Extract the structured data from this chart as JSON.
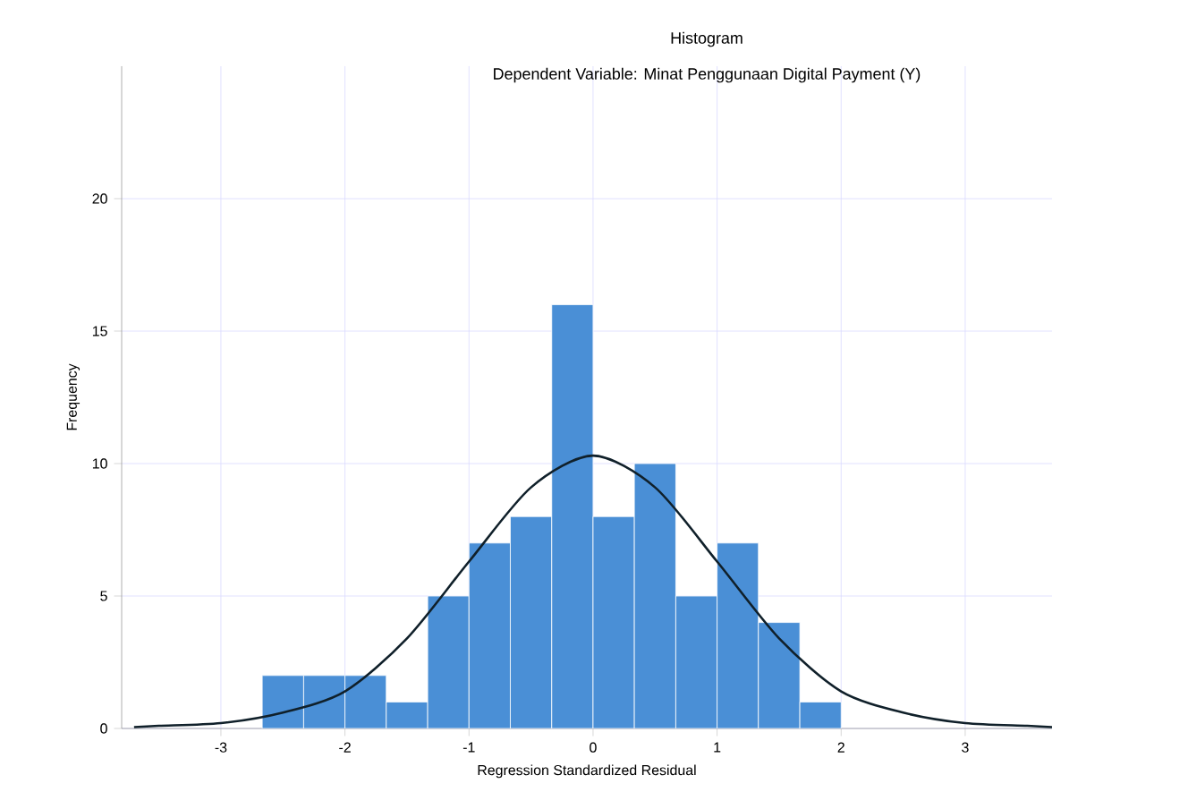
{
  "chart_data": {
    "type": "histogram",
    "title": "Histogram",
    "subtitle": "Dependent Variable: Minat Penggunaan Digital Payment (Y)",
    "xlabel": "Regression Standardized Residual",
    "ylabel": "Frequency",
    "bins": [
      -2.667,
      -2.333,
      -2,
      -1.667,
      -1.333,
      -1,
      -0.667,
      -0.333,
      0,
      0.333,
      0.667,
      1,
      1.333,
      1.667,
      2
    ],
    "values": [
      2,
      2,
      2,
      1,
      5,
      7,
      8,
      16,
      8,
      10,
      5,
      7,
      4,
      1
    ],
    "color": "#4a8fd6",
    "series": [
      {
        "type": "line",
        "color": "#10202a",
        "x": [
          -3.7,
          -3.5,
          -3,
          -2.5,
          -2,
          -1.5,
          -1,
          -0.5,
          0,
          0.5,
          1,
          1.5,
          2,
          2.5,
          3,
          3.5,
          3.7
        ],
        "values": [
          0.05,
          0.1,
          0.2,
          0.6,
          1.4,
          3.4,
          6.3,
          9.1,
          10.3,
          9.1,
          6.3,
          3.4,
          1.4,
          0.6,
          0.2,
          0.1,
          0.05
        ]
      }
    ],
    "xlim": [
      -3.8,
      3.7
    ],
    "ylim": [
      0,
      25
    ],
    "xticks": [
      -3,
      -2,
      -1,
      0,
      1,
      2,
      3
    ],
    "yticks": [
      0,
      5,
      10,
      15,
      20
    ],
    "grid": true
  }
}
